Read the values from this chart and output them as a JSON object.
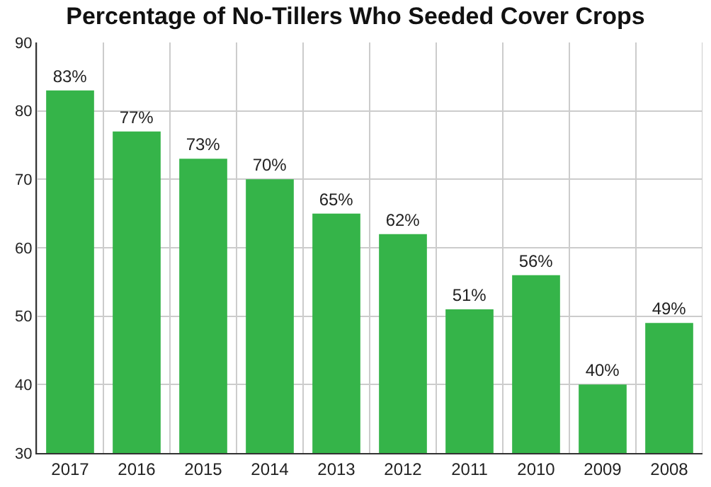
{
  "chart_data": {
    "type": "bar",
    "title": "Percentage of No-Tillers Who Seeded Cover Crops",
    "categories": [
      "2017",
      "2016",
      "2015",
      "2014",
      "2013",
      "2012",
      "2011",
      "2010",
      "2009",
      "2008"
    ],
    "values": [
      83,
      77,
      73,
      70,
      65,
      62,
      51,
      56,
      40,
      49
    ],
    "value_labels": [
      "83%",
      "77%",
      "73%",
      "70%",
      "65%",
      "62%",
      "51%",
      "56%",
      "40%",
      "49%"
    ],
    "color": "#35b449",
    "ylim": [
      30,
      90
    ],
    "yticks": [
      30,
      40,
      50,
      60,
      70,
      80,
      90
    ],
    "grid": true,
    "legend": false
  }
}
